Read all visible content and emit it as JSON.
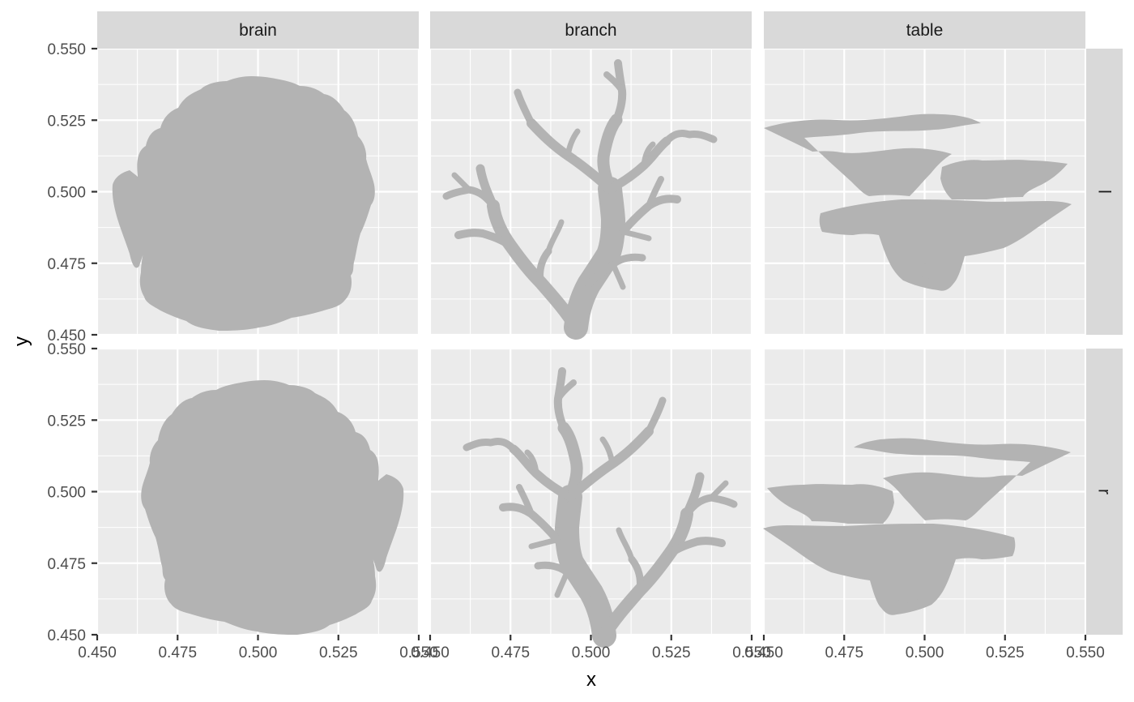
{
  "chart_data": {
    "type": "facet",
    "xlabel": "x",
    "ylabel": "y",
    "xlim": [
      0.45,
      0.55
    ],
    "ylim": [
      0.45,
      0.55
    ],
    "x_ticks": [
      "0.450",
      "0.475",
      "0.500",
      "0.525",
      "0.550"
    ],
    "y_ticks": [
      "0.450",
      "0.475",
      "0.500",
      "0.525",
      "0.550"
    ],
    "columns": [
      "brain",
      "branch",
      "table"
    ],
    "rows": [
      "l",
      "r"
    ],
    "grid": true,
    "fill_color": "#b3b3b3",
    "panel_background": "#ebebeb",
    "strip_background": "#d9d9d9"
  }
}
